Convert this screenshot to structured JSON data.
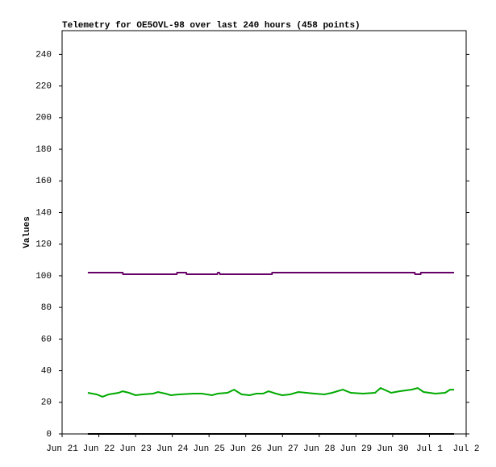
{
  "chart_data": {
    "type": "line",
    "title": "Telemetry for OE5OVL-98 over last 240 hours (458 points)",
    "y_label": "Values",
    "xlim": [
      0,
      11
    ],
    "xticks": [
      {
        "value": 0,
        "label": "Jun 21"
      },
      {
        "value": 1,
        "label": "Jun 22"
      },
      {
        "value": 2,
        "label": "Jun 23"
      },
      {
        "value": 3,
        "label": "Jun 24"
      },
      {
        "value": 4,
        "label": "Jun 25"
      },
      {
        "value": 5,
        "label": "Jun 26"
      },
      {
        "value": 6,
        "label": "Jun 27"
      },
      {
        "value": 7,
        "label": "Jun 28"
      },
      {
        "value": 8,
        "label": "Jun 29"
      },
      {
        "value": 9,
        "label": "Jun 30"
      },
      {
        "value": 10,
        "label": "Jul 1"
      },
      {
        "value": 11,
        "label": "Jul 2"
      }
    ],
    "ylim": [
      0,
      255
    ],
    "yticks": [
      0,
      20,
      40,
      60,
      80,
      100,
      120,
      140,
      160,
      180,
      200,
      220,
      240
    ],
    "series": [
      {
        "color": "#660066",
        "x": [
          0.7,
          1.65,
          1.66,
          3.12,
          3.13,
          3.38,
          3.39,
          4.22,
          4.24,
          4.28,
          4.3,
          5.71,
          5.72,
          9.6,
          9.61,
          9.76,
          9.77,
          10.67
        ],
        "values": [
          102,
          102,
          101,
          101,
          102,
          102,
          101,
          101,
          102,
          102,
          101,
          101,
          102,
          102,
          101,
          101,
          102,
          102
        ]
      },
      {
        "color": "#00aa00",
        "x": [
          0.7,
          0.94,
          1.1,
          1.27,
          1.54,
          1.65,
          1.82,
          2.0,
          2.19,
          2.48,
          2.61,
          2.81,
          2.96,
          3.18,
          3.58,
          3.8,
          4.08,
          4.24,
          4.5,
          4.68,
          4.89,
          5.11,
          5.29,
          5.47,
          5.62,
          5.82,
          5.99,
          6.21,
          6.43,
          6.65,
          6.87,
          7.14,
          7.35,
          7.64,
          7.86,
          8.19,
          8.52,
          8.67,
          8.96,
          9.18,
          9.51,
          9.68,
          9.84,
          10.16,
          10.43,
          10.56,
          10.67
        ],
        "values": [
          26,
          25,
          23.5,
          25,
          26,
          27,
          26,
          24.5,
          25,
          25.5,
          26.5,
          25.5,
          24.5,
          25,
          25.5,
          25.5,
          24.5,
          25.5,
          26,
          28,
          25,
          24.5,
          25.5,
          25.5,
          27,
          25.5,
          24.5,
          25,
          26.5,
          26,
          25.5,
          25,
          26,
          28,
          26,
          25.5,
          26,
          29,
          26,
          27,
          28,
          29,
          26.5,
          25.5,
          26,
          28,
          28
        ]
      },
      {
        "color": "#000000",
        "x": [
          0.7,
          10.67
        ],
        "values": [
          0,
          0
        ]
      }
    ]
  }
}
